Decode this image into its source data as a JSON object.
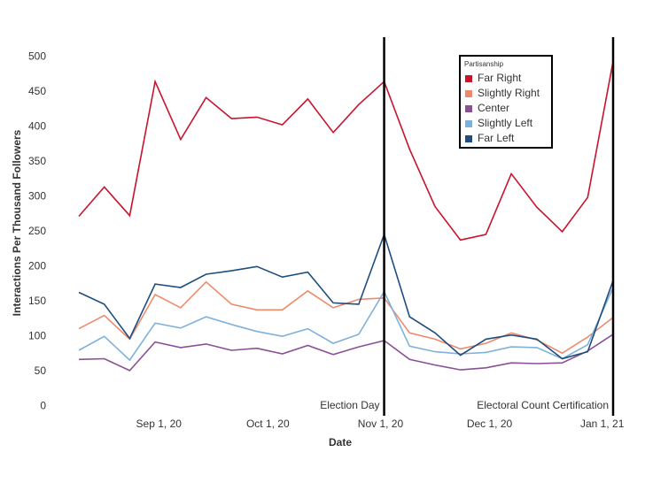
{
  "chart_data": {
    "type": "line",
    "xlabel": "Date",
    "ylabel": "Interactions Per Thousand Followers",
    "x": [
      "2020-08-10",
      "2020-08-17",
      "2020-08-24",
      "2020-08-31",
      "2020-09-07",
      "2020-09-14",
      "2020-09-21",
      "2020-09-28",
      "2020-10-05",
      "2020-10-12",
      "2020-10-19",
      "2020-10-26",
      "2020-11-02",
      "2020-11-09",
      "2020-11-16",
      "2020-11-23",
      "2020-11-30",
      "2020-12-07",
      "2020-12-14",
      "2020-12-21",
      "2020-12-28",
      "2021-01-04"
    ],
    "series": [
      {
        "name": "Far Right",
        "color": "#c8142c",
        "values": [
          272,
          314,
          273,
          465,
          382,
          442,
          412,
          414,
          403,
          440,
          392,
          432,
          465,
          368,
          286,
          238,
          246,
          333,
          285,
          250,
          299,
          494
        ]
      },
      {
        "name": "Slightly Right",
        "color": "#ee8a6c",
        "values": [
          111,
          130,
          96,
          160,
          141,
          178,
          146,
          138,
          138,
          165,
          141,
          153,
          155,
          105,
          96,
          82,
          90,
          105,
          95,
          76,
          99,
          127
        ]
      },
      {
        "name": "Center",
        "color": "#8a5096",
        "values": [
          67,
          68,
          51,
          92,
          84,
          89,
          80,
          83,
          75,
          87,
          74,
          85,
          94,
          67,
          59,
          52,
          55,
          62,
          61,
          62,
          79,
          103
        ]
      },
      {
        "name": "Slightly Left",
        "color": "#7fb1da",
        "values": [
          80,
          100,
          66,
          119,
          112,
          128,
          117,
          107,
          100,
          111,
          90,
          103,
          164,
          86,
          78,
          75,
          77,
          85,
          84,
          68,
          88,
          170
        ]
      },
      {
        "name": "Far Left",
        "color": "#1d4e7e",
        "values": [
          163,
          146,
          97,
          175,
          170,
          189,
          194,
          200,
          185,
          192,
          148,
          146,
          246,
          128,
          105,
          73,
          96,
          102,
          96,
          68,
          78,
          180
        ]
      }
    ],
    "xlim": [
      "2020-08-10",
      "2021-01-04"
    ],
    "xticks": [
      {
        "value": "2020-09-01",
        "label": "Sep 1, 20"
      },
      {
        "value": "2020-10-01",
        "label": "Oct 1, 20"
      },
      {
        "value": "2020-11-01",
        "label": "Nov 1, 20"
      },
      {
        "value": "2020-12-01",
        "label": "Dec 1, 20"
      },
      {
        "value": "2021-01-01",
        "label": "Jan 1, 21"
      }
    ],
    "ylim": [
      -15,
      540
    ],
    "yticks": [
      0,
      50,
      100,
      150,
      200,
      250,
      300,
      350,
      400,
      450,
      500
    ],
    "grid": false,
    "annotations": [
      {
        "x": "2020-11-02",
        "label": "Election Day"
      },
      {
        "x": "2021-01-04",
        "label": "Electoral Count Certification"
      }
    ],
    "legend": {
      "title": "Partisanship",
      "position": "upper right"
    }
  }
}
